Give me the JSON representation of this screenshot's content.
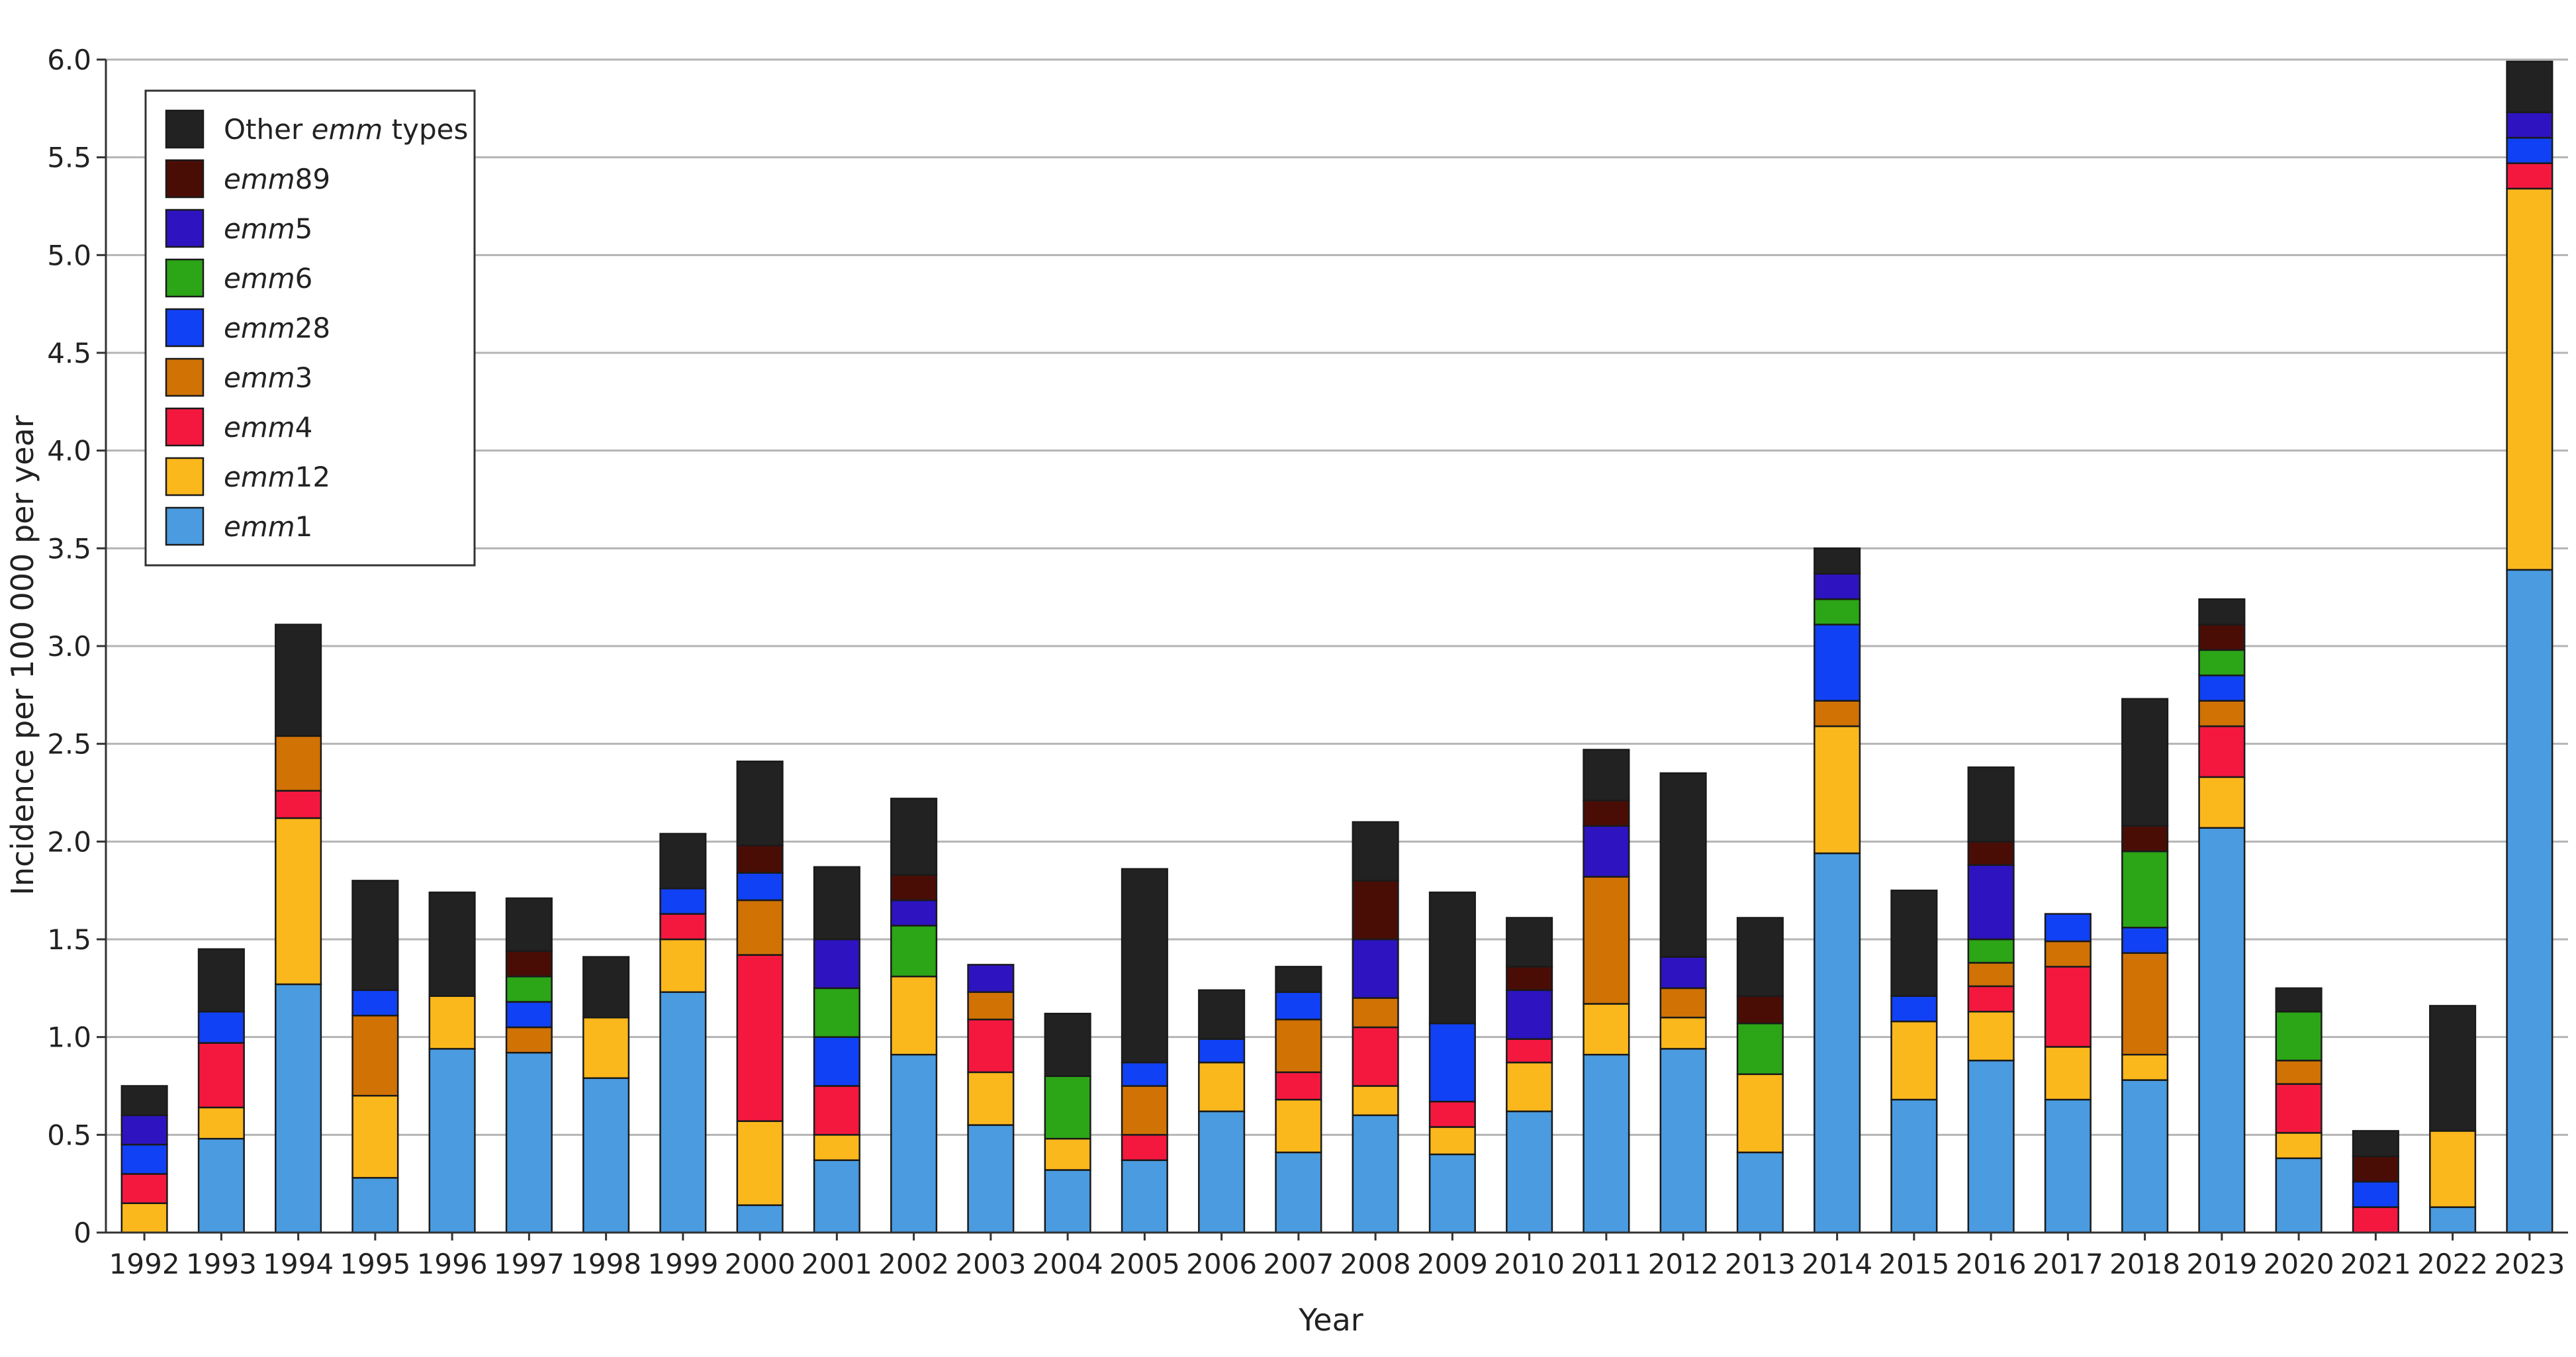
{
  "chart_data": {
    "type": "bar",
    "stacked": true,
    "xlabel": "Year",
    "ylabel": "Incidence per 100 000 per year",
    "ylim": [
      0,
      6.0
    ],
    "yticks": [
      "0",
      "0.5",
      "1.0",
      "1.5",
      "2.0",
      "2.5",
      "3.0",
      "3.5",
      "4.0",
      "4.5",
      "5.0",
      "5.5",
      "6.0"
    ],
    "grid": true,
    "legend_position": "top-left",
    "categories": [
      "1992",
      "1993",
      "1994",
      "1995",
      "1996",
      "1997",
      "1998",
      "1999",
      "2000",
      "2001",
      "2002",
      "2003",
      "2004",
      "2005",
      "2006",
      "2007",
      "2008",
      "2009",
      "2010",
      "2011",
      "2012",
      "2013",
      "2014",
      "2015",
      "2016",
      "2017",
      "2018",
      "2019",
      "2020",
      "2021",
      "2022",
      "2023"
    ],
    "series": [
      {
        "name": "emm1",
        "prefix": "emm",
        "suffix": "1",
        "color": "#4a9be0",
        "values": [
          0,
          0.48,
          1.27,
          0.28,
          0.94,
          0.92,
          0.79,
          1.23,
          0.14,
          0.37,
          0.91,
          0.55,
          0.32,
          0.37,
          0.62,
          0.41,
          0.6,
          0.4,
          0.62,
          0.91,
          0.94,
          0.41,
          1.94,
          0.68,
          0.88,
          0.68,
          0.78,
          2.07,
          0.38,
          0,
          0.13,
          3.39
        ]
      },
      {
        "name": "emm12",
        "prefix": "emm",
        "suffix": "12",
        "color": "#fbb81c",
        "values": [
          0.15,
          0.16,
          0.85,
          0.42,
          0.27,
          0,
          0.31,
          0.27,
          0.43,
          0.13,
          0.4,
          0.27,
          0.16,
          0,
          0.25,
          0.27,
          0.15,
          0.14,
          0.25,
          0.26,
          0.16,
          0.4,
          0.65,
          0.4,
          0.25,
          0.27,
          0.13,
          0.26,
          0.13,
          0,
          0.39,
          1.95
        ]
      },
      {
        "name": "emm4",
        "prefix": "emm",
        "suffix": "4",
        "color": "#f4183f",
        "values": [
          0.15,
          0.33,
          0.14,
          0,
          0,
          0,
          0,
          0.13,
          0.85,
          0.25,
          0,
          0.27,
          0,
          0.13,
          0,
          0.14,
          0.3,
          0.13,
          0.12,
          0,
          0,
          0,
          0,
          0,
          0.13,
          0.41,
          0,
          0.26,
          0.25,
          0.13,
          0,
          0.13
        ]
      },
      {
        "name": "emm3",
        "prefix": "emm",
        "suffix": "3",
        "color": "#d07204",
        "values": [
          0,
          0,
          0.28,
          0.41,
          0,
          0.13,
          0,
          0,
          0.28,
          0,
          0,
          0.14,
          0,
          0.25,
          0,
          0.27,
          0.15,
          0,
          0,
          0.65,
          0.15,
          0,
          0.13,
          0,
          0.12,
          0.13,
          0.52,
          0.13,
          0.12,
          0,
          0,
          0
        ]
      },
      {
        "name": "emm28",
        "prefix": "emm",
        "suffix": "28",
        "color": "#1141f5",
        "values": [
          0.15,
          0.16,
          0,
          0.13,
          0,
          0.13,
          0,
          0.13,
          0.14,
          0.25,
          0,
          0,
          0,
          0.12,
          0.12,
          0.14,
          0,
          0.4,
          0,
          0,
          0,
          0,
          0.39,
          0.13,
          0,
          0.14,
          0.13,
          0.13,
          0,
          0.13,
          0,
          0.13
        ]
      },
      {
        "name": "emm6",
        "prefix": "emm",
        "suffix": "6",
        "color": "#2ca517",
        "values": [
          0,
          0,
          0,
          0,
          0,
          0.13,
          0,
          0,
          0,
          0.25,
          0.26,
          0,
          0.32,
          0,
          0,
          0,
          0,
          0,
          0,
          0,
          0,
          0.26,
          0.13,
          0,
          0.12,
          0,
          0.39,
          0.13,
          0.25,
          0,
          0,
          0
        ]
      },
      {
        "name": "emm5",
        "prefix": "emm",
        "suffix": "5",
        "color": "#2d14c0",
        "values": [
          0.15,
          0,
          0,
          0,
          0,
          0,
          0,
          0,
          0,
          0.25,
          0.13,
          0.14,
          0,
          0,
          0,
          0,
          0.3,
          0,
          0.25,
          0.26,
          0.16,
          0,
          0.13,
          0,
          0.38,
          0,
          0,
          0,
          0,
          0,
          0,
          0.13
        ]
      },
      {
        "name": "emm89",
        "prefix": "emm",
        "suffix": "89",
        "color": "#4a0d06",
        "values": [
          0,
          0,
          0,
          0,
          0,
          0.13,
          0,
          0,
          0.14,
          0,
          0.13,
          0,
          0,
          0,
          0,
          0,
          0.3,
          0,
          0.12,
          0.13,
          0,
          0.14,
          0,
          0,
          0.12,
          0,
          0.13,
          0.13,
          0,
          0.13,
          0,
          0
        ]
      },
      {
        "name": "Other emm types",
        "prefix": "Other ",
        "suffix": " types",
        "italic_word": "emm",
        "color": "#222222",
        "values": [
          0.15,
          0.32,
          0.57,
          0.56,
          0.53,
          0.27,
          0.31,
          0.28,
          0.43,
          0.37,
          0.39,
          0,
          0.32,
          0.99,
          0.25,
          0.13,
          0.3,
          0.67,
          0.25,
          0.26,
          0.94,
          0.4,
          0.13,
          0.54,
          0.38,
          0,
          0.65,
          0.13,
          0.12,
          0.13,
          0.64,
          0.26
        ]
      }
    ]
  }
}
